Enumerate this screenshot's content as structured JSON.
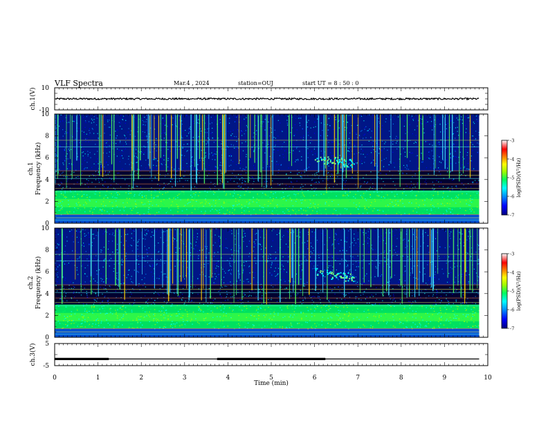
{
  "header": {
    "title": "VLF Spectra",
    "date": "Mar.4 , 2024",
    "station": "station=OUJ",
    "start_ut": "start UT =  8 : 50 : 0"
  },
  "chart_data": [
    {
      "type": "line",
      "panel": "ch1-waveform",
      "ylabel": "ch.1(V)",
      "ylim": [
        -10,
        10
      ],
      "y_ticks": [
        "10",
        "-10"
      ],
      "xlim": [
        0,
        10
      ],
      "series": [
        {
          "x": [
            0,
            9.8
          ],
          "y": [
            0,
            0
          ]
        }
      ]
    },
    {
      "type": "heatmap",
      "panel": "ch1-spectrogram",
      "ylabel": "ch.1",
      "ylabel2": "Frequency (kHz)",
      "ylim": [
        0,
        10
      ],
      "y_ticks": [
        "0",
        "2",
        "4",
        "6",
        "8",
        "10"
      ],
      "xlim": [
        0,
        10
      ],
      "data_end_min": 9.8,
      "noise_band_khz": [
        0.8,
        3.0
      ],
      "emission_patch": {
        "t_min": [
          6.0,
          6.9
        ],
        "f_khz": [
          5.6,
          6.4
        ]
      },
      "colorbar": {
        "label": "log(PSD)(V²/Hz)",
        "range": [
          -7,
          -3
        ],
        "ticks": [
          "-3",
          "-4",
          "-5",
          "-6",
          "-7"
        ],
        "colormap": [
          "#000080",
          "#0000ff",
          "#0090ff",
          "#00ffff",
          "#00ff60",
          "#a0ff00",
          "#ffff00",
          "#ff8000",
          "#ff0000",
          "#ffffff"
        ]
      }
    },
    {
      "type": "heatmap",
      "panel": "ch2-spectrogram",
      "ylabel": "ch.2",
      "ylabel2": "Frequency (kHz)",
      "ylim": [
        0,
        10
      ],
      "y_ticks": [
        "0",
        "2",
        "4",
        "6",
        "8",
        "10"
      ],
      "xlim": [
        0,
        10
      ],
      "data_end_min": 9.8,
      "noise_band_khz": [
        0.8,
        3.0
      ],
      "emission_patch": {
        "t_min": [
          6.0,
          6.9
        ],
        "f_khz": [
          5.6,
          6.4
        ]
      },
      "colorbar": {
        "label": "log(PSD)(V²/Hz)",
        "range": [
          -7,
          -3
        ],
        "ticks": [
          "-3",
          "-4",
          "-5",
          "-6",
          "-7"
        ]
      }
    },
    {
      "type": "line",
      "panel": "ch3-trace",
      "ylabel": "ch.3(V)",
      "ylim": [
        -5,
        5
      ],
      "y_ticks": [
        "5",
        "-5"
      ],
      "xlim": [
        0,
        10
      ],
      "xlabel": "Time (min)",
      "x_ticks": [
        "0",
        "1",
        "2",
        "3",
        "4",
        "5",
        "6",
        "7",
        "8",
        "9",
        "10"
      ],
      "series": [
        {
          "x": [
            0,
            9.8
          ],
          "y": [
            -2,
            -2
          ]
        },
        {
          "x": [
            0,
            1.25
          ],
          "y": [
            -2,
            -2
          ],
          "bold": true
        },
        {
          "x": [
            3.75,
            6.25
          ],
          "y": [
            -2,
            -2
          ],
          "bold": true
        }
      ]
    }
  ]
}
